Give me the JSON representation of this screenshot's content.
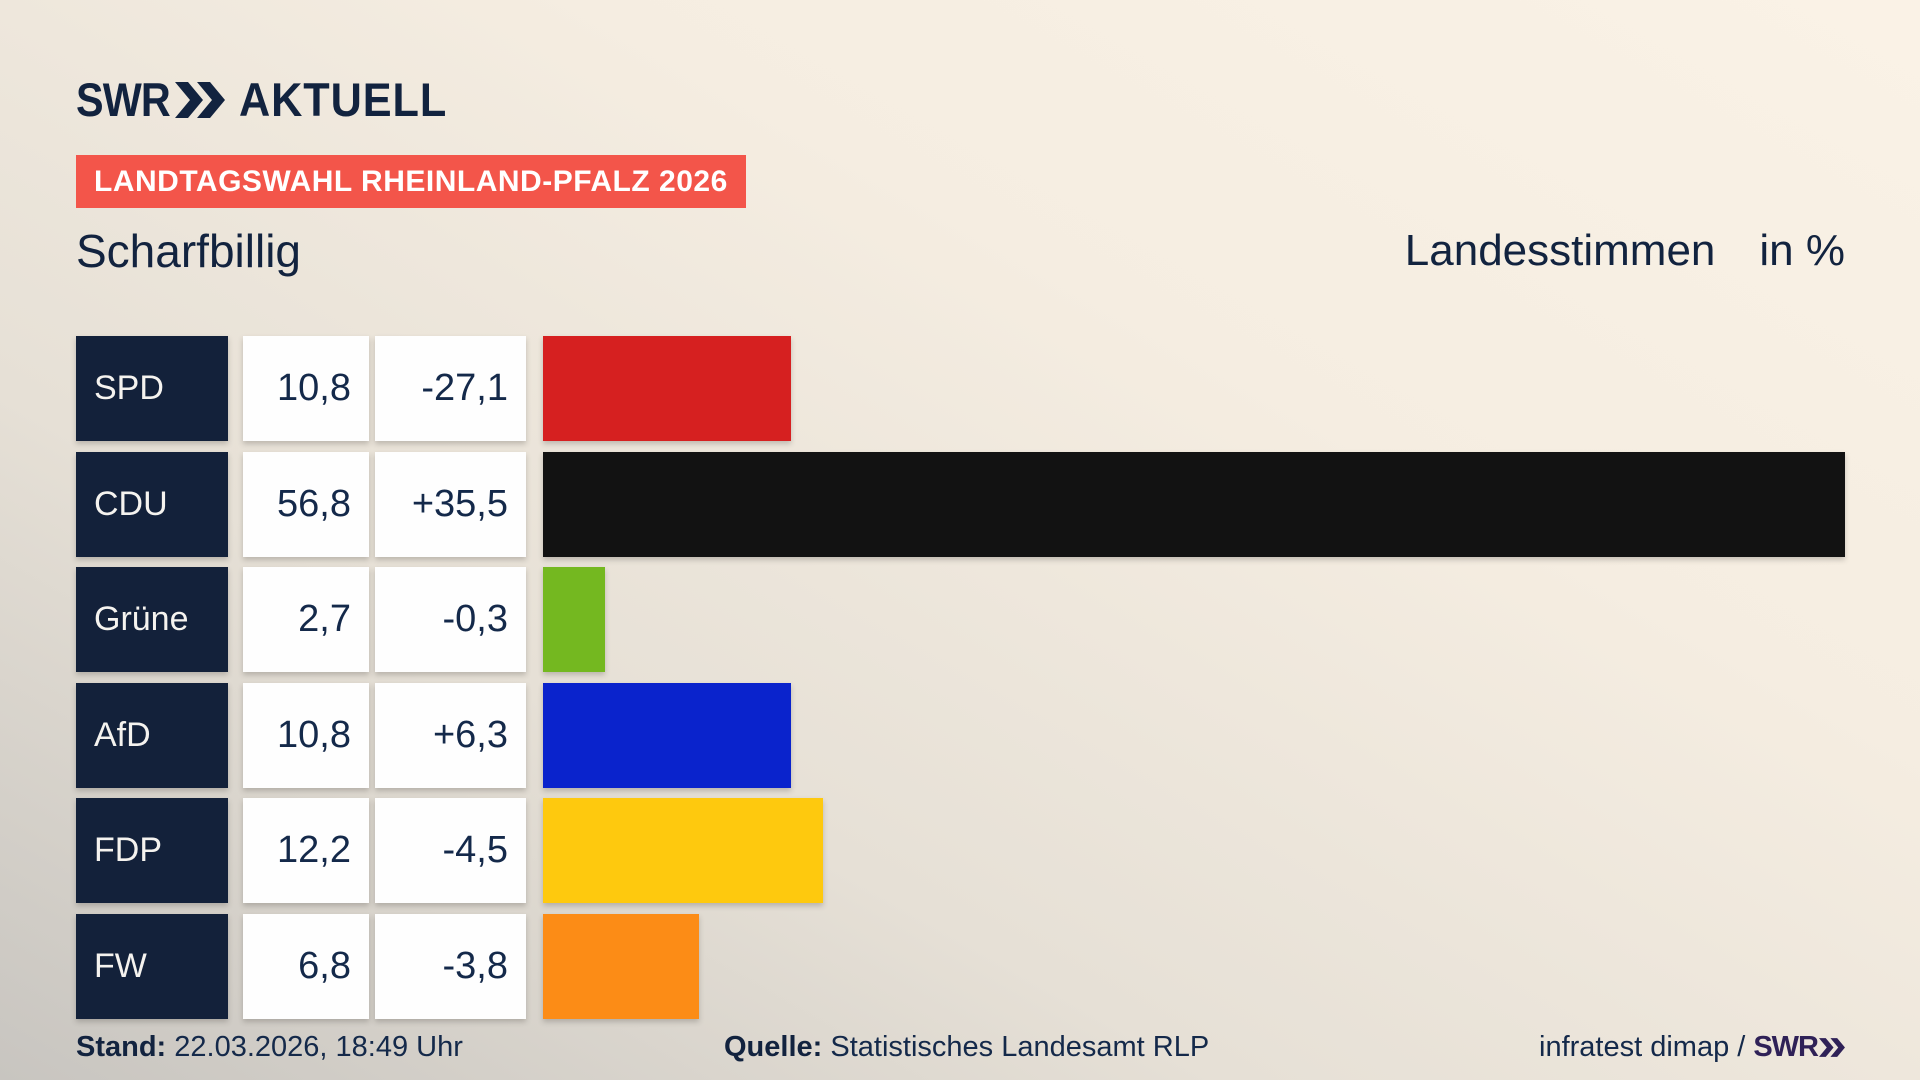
{
  "brand": {
    "swr": "SWR",
    "aktuell": "AKTUELL"
  },
  "banner": {
    "label": "LANDTAGSWAHL RHEINLAND-PFALZ 2026",
    "bg": "#f3554a"
  },
  "header": {
    "title": "Scharfbillig",
    "right_title": "Landesstimmen",
    "right_unit": "in %"
  },
  "chart_data": {
    "type": "bar",
    "orientation": "horizontal",
    "title": "Scharfbillig",
    "subtitle": "Landesstimmen in %",
    "unit": "%",
    "grid": false,
    "xlim": [
      0,
      56.8
    ],
    "categories": [
      "SPD",
      "CDU",
      "Grüne",
      "AfD",
      "FDP",
      "FW"
    ],
    "values": [
      10.8,
      56.8,
      2.7,
      10.8,
      12.2,
      6.8
    ],
    "value_labels": [
      "10,8",
      "56,8",
      "2,7",
      "10,8",
      "12,2",
      "6,8"
    ],
    "changes": [
      "-27,1",
      "+35,5",
      "-0,3",
      "+6,3",
      "-4,5",
      "-3,8"
    ],
    "bar_colors": [
      "#d62020",
      "#121212",
      "#74b820",
      "#0a23cc",
      "#fec90e",
      "#fc8c16"
    ],
    "label_box_color": "#13213a",
    "value_text_color": "#14294a"
  },
  "footer": {
    "stand_label": "Stand:",
    "stand_value": "22.03.2026, 18:49 Uhr",
    "quelle_label": "Quelle:",
    "quelle_value": "Statistisches Landesamt RLP",
    "credit_text": "infratest dimap /",
    "credit_logo": "SWR"
  },
  "colors": {
    "navy": "#12233f",
    "banner_red": "#f3554a",
    "background_top": "#faf2e6",
    "background_bottom": "#c8c5c0"
  }
}
